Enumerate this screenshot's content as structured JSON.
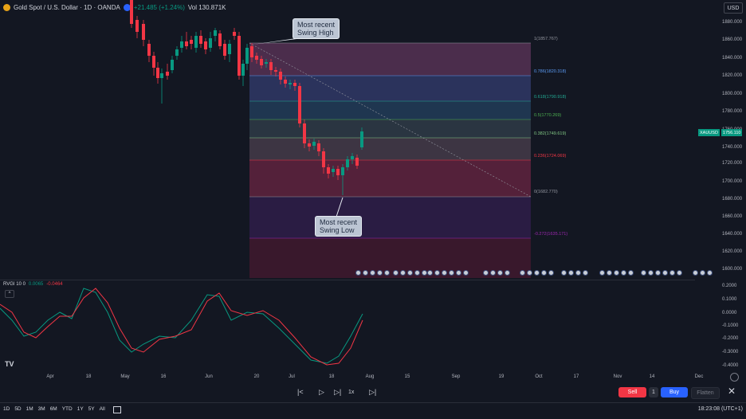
{
  "header": {
    "symbol": "Gold Spot / U.S. Dollar · 1D · OANDA",
    "change": "+21.485 (+1.24%)",
    "vol": "Vol 130.871K",
    "currency": "USD"
  },
  "price_axis": {
    "labels": [
      "1880.000",
      "1860.000",
      "1840.000",
      "1820.000",
      "1800.000",
      "1780.000",
      "1760.000",
      "1740.000",
      "1720.000",
      "1700.000",
      "1680.000",
      "1660.000",
      "1640.000",
      "1620.000",
      "1600.000"
    ],
    "current_symbol": "XAUUSD",
    "current_price": "1756.110"
  },
  "time_axis": {
    "labels": [
      "Apr",
      "18",
      "May",
      "16",
      "Jun",
      "20",
      "Jul",
      "18",
      "Aug",
      "15",
      "Sep",
      "19",
      "Oct",
      "17",
      "Nov",
      "14",
      "Dec"
    ]
  },
  "fib": {
    "levels": [
      {
        "label": "1(1857.767)",
        "color": "#9598a1"
      },
      {
        "label": "0.786(1820.318)",
        "color": "#5b9cf6"
      },
      {
        "label": "0.618(1790.918)",
        "color": "#22ab94"
      },
      {
        "label": "0.5(1770.269)",
        "color": "#4caf50"
      },
      {
        "label": "0.382(1749.619)",
        "color": "#81c784"
      },
      {
        "label": "0.236(1724.069)",
        "color": "#f23645"
      },
      {
        "label": "0(1682.770)",
        "color": "#9598a1"
      },
      {
        "label": "-0.272(1635.171)",
        "color": "#9c27b0"
      }
    ]
  },
  "callouts": {
    "high": [
      "Most recent",
      "Swing High"
    ],
    "low": [
      "Most recent",
      "Swing Low"
    ]
  },
  "indicator": {
    "name": "RVGI 10 0",
    "v1": "0.0065",
    "v2": "-0.0464",
    "axis": [
      "0.2000",
      "0.1000",
      "0.0000",
      "-0.1000",
      "-0.2000",
      "-0.3000",
      "-0.4000"
    ]
  },
  "trade": {
    "sell": "Sell",
    "qty": "1",
    "buy": "Buy",
    "flatten": "Flatten",
    "speed": "1x"
  },
  "timeframes": [
    "1D",
    "5D",
    "1M",
    "3M",
    "6M",
    "YTD",
    "1Y",
    "5Y",
    "All"
  ],
  "clock": "18:23:08 (UTC+1)",
  "colors": {
    "up": "#089981",
    "down": "#f23645",
    "bg": "#131722",
    "accent": "#2962ff"
  }
}
